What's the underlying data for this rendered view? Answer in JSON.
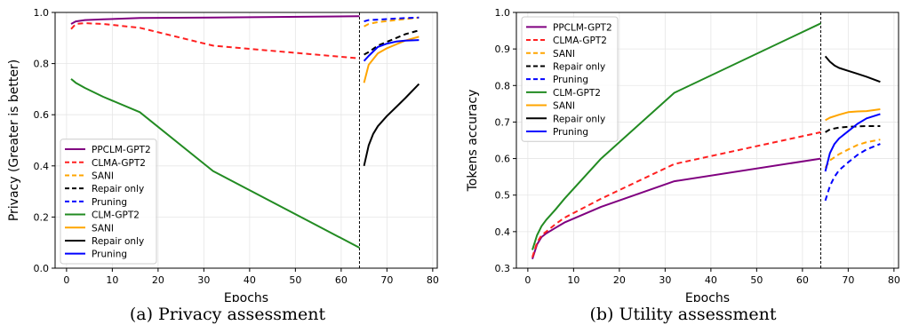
{
  "chart_data": [
    {
      "type": "line",
      "xlabel": "Epochs",
      "ylabel": "Privacy (Greater is better)",
      "caption": "(a) Privacy assessment",
      "xlim": [
        -2.5,
        81
      ],
      "ylim": [
        0.0,
        1.0
      ],
      "x_ticks": [
        0,
        10,
        20,
        30,
        40,
        50,
        60,
        70,
        80
      ],
      "y_ticks": [
        "0.0",
        "0.2",
        "0.4",
        "0.6",
        "0.8",
        "1.0"
      ],
      "vline_x": 64,
      "grid": true,
      "legend_position": "lower-left",
      "series": [
        {
          "name": "PPCLM-GPT2",
          "color": "#800080",
          "dash": false,
          "x": [
            1,
            2,
            4,
            8,
            16,
            32,
            64
          ],
          "y": [
            0.955,
            0.965,
            0.97,
            0.973,
            0.978,
            0.98,
            0.985
          ]
        },
        {
          "name": "CLMA-GPT2",
          "color": "#ff2020",
          "dash": true,
          "x": [
            1,
            2,
            4,
            8,
            16,
            32,
            64
          ],
          "y": [
            0.935,
            0.955,
            0.958,
            0.955,
            0.94,
            0.87,
            0.82
          ]
        },
        {
          "name": "SANI",
          "color": "#ffa500",
          "dash": true,
          "x": [
            65,
            66,
            68,
            70,
            72,
            74,
            77
          ],
          "y": [
            0.945,
            0.955,
            0.962,
            0.966,
            0.97,
            0.974,
            0.98
          ]
        },
        {
          "name": "Repair only",
          "color": "#000000",
          "dash": true,
          "x": [
            65,
            66,
            68,
            70,
            72,
            74,
            77
          ],
          "y": [
            0.835,
            0.845,
            0.87,
            0.885,
            0.9,
            0.915,
            0.93
          ]
        },
        {
          "name": "Pruning",
          "color": "#0000ff",
          "dash": true,
          "x": [
            65,
            66,
            68,
            70,
            72,
            74,
            77
          ],
          "y": [
            0.965,
            0.97,
            0.972,
            0.974,
            0.976,
            0.978,
            0.98
          ]
        },
        {
          "name": "CLM-GPT2",
          "color": "#228b22",
          "dash": false,
          "x": [
            1,
            2,
            4,
            8,
            16,
            32,
            64
          ],
          "y": [
            0.74,
            0.725,
            0.705,
            0.67,
            0.61,
            0.38,
            0.08
          ]
        },
        {
          "name": "SANI",
          "color": "#ffa500",
          "dash": false,
          "x": [
            65,
            66,
            68,
            70,
            72,
            74,
            77
          ],
          "y": [
            0.725,
            0.795,
            0.84,
            0.86,
            0.875,
            0.89,
            0.905
          ]
        },
        {
          "name": "Repair only",
          "color": "#000000",
          "dash": false,
          "x": [
            65,
            66,
            67,
            68,
            70,
            72,
            74,
            77
          ],
          "y": [
            0.4,
            0.48,
            0.525,
            0.555,
            0.595,
            0.63,
            0.665,
            0.72
          ]
        },
        {
          "name": "Pruning",
          "color": "#0000ff",
          "dash": false,
          "x": [
            65,
            66,
            68,
            70,
            72,
            74,
            77
          ],
          "y": [
            0.81,
            0.83,
            0.865,
            0.878,
            0.886,
            0.89,
            0.892
          ]
        }
      ]
    },
    {
      "type": "line",
      "xlabel": "Epochs",
      "ylabel": "Tokens accuracy",
      "caption": "(b) Utility assessment",
      "xlim": [
        -2.5,
        81
      ],
      "ylim": [
        0.3,
        1.0
      ],
      "x_ticks": [
        0,
        10,
        20,
        30,
        40,
        50,
        60,
        70,
        80
      ],
      "y_ticks": [
        "0.3",
        "0.4",
        "0.5",
        "0.6",
        "0.7",
        "0.8",
        "0.9",
        "1.0"
      ],
      "vline_x": 64,
      "grid": true,
      "legend_position": "upper-left",
      "series": [
        {
          "name": "PPCLM-GPT2",
          "color": "#800080",
          "dash": false,
          "x": [
            1,
            2,
            3,
            4,
            6,
            8,
            16,
            32,
            64
          ],
          "y": [
            0.325,
            0.365,
            0.385,
            0.395,
            0.41,
            0.425,
            0.468,
            0.538,
            0.6
          ]
        },
        {
          "name": "CLMA-GPT2",
          "color": "#ff2020",
          "dash": true,
          "x": [
            1,
            2,
            3,
            4,
            6,
            8,
            16,
            32,
            64
          ],
          "y": [
            0.33,
            0.37,
            0.39,
            0.4,
            0.42,
            0.438,
            0.49,
            0.585,
            0.672
          ]
        },
        {
          "name": "SANI",
          "color": "#ffa500",
          "dash": true,
          "x": [
            65,
            66,
            68,
            70,
            72,
            74,
            77
          ],
          "y": [
            0.575,
            0.595,
            0.612,
            0.625,
            0.637,
            0.645,
            0.652
          ]
        },
        {
          "name": "Repair only",
          "color": "#000000",
          "dash": true,
          "x": [
            65,
            66,
            68,
            70,
            72,
            74,
            77
          ],
          "y": [
            0.672,
            0.68,
            0.685,
            0.687,
            0.688,
            0.689,
            0.689
          ]
        },
        {
          "name": "Pruning",
          "color": "#0000ff",
          "dash": true,
          "x": [
            65,
            66,
            67,
            68,
            70,
            72,
            74,
            77
          ],
          "y": [
            0.485,
            0.525,
            0.55,
            0.568,
            0.59,
            0.61,
            0.625,
            0.64
          ]
        },
        {
          "name": "CLM-GPT2",
          "color": "#228b22",
          "dash": false,
          "x": [
            1,
            2,
            3,
            4,
            6,
            8,
            16,
            32,
            64
          ],
          "y": [
            0.35,
            0.39,
            0.415,
            0.432,
            0.46,
            0.49,
            0.6,
            0.78,
            0.97
          ]
        },
        {
          "name": "SANI",
          "color": "#ffa500",
          "dash": false,
          "x": [
            65,
            66,
            68,
            70,
            72,
            74,
            77
          ],
          "y": [
            0.705,
            0.712,
            0.72,
            0.727,
            0.729,
            0.73,
            0.735
          ]
        },
        {
          "name": "Repair only",
          "color": "#000000",
          "dash": false,
          "x": [
            65,
            66,
            67,
            68,
            70,
            72,
            74,
            77
          ],
          "y": [
            0.88,
            0.865,
            0.855,
            0.848,
            0.84,
            0.832,
            0.824,
            0.81
          ]
        },
        {
          "name": "Pruning",
          "color": "#0000ff",
          "dash": false,
          "x": [
            65,
            66,
            67,
            68,
            70,
            72,
            74,
            77
          ],
          "y": [
            0.565,
            0.615,
            0.64,
            0.655,
            0.675,
            0.695,
            0.71,
            0.722
          ]
        }
      ]
    }
  ]
}
